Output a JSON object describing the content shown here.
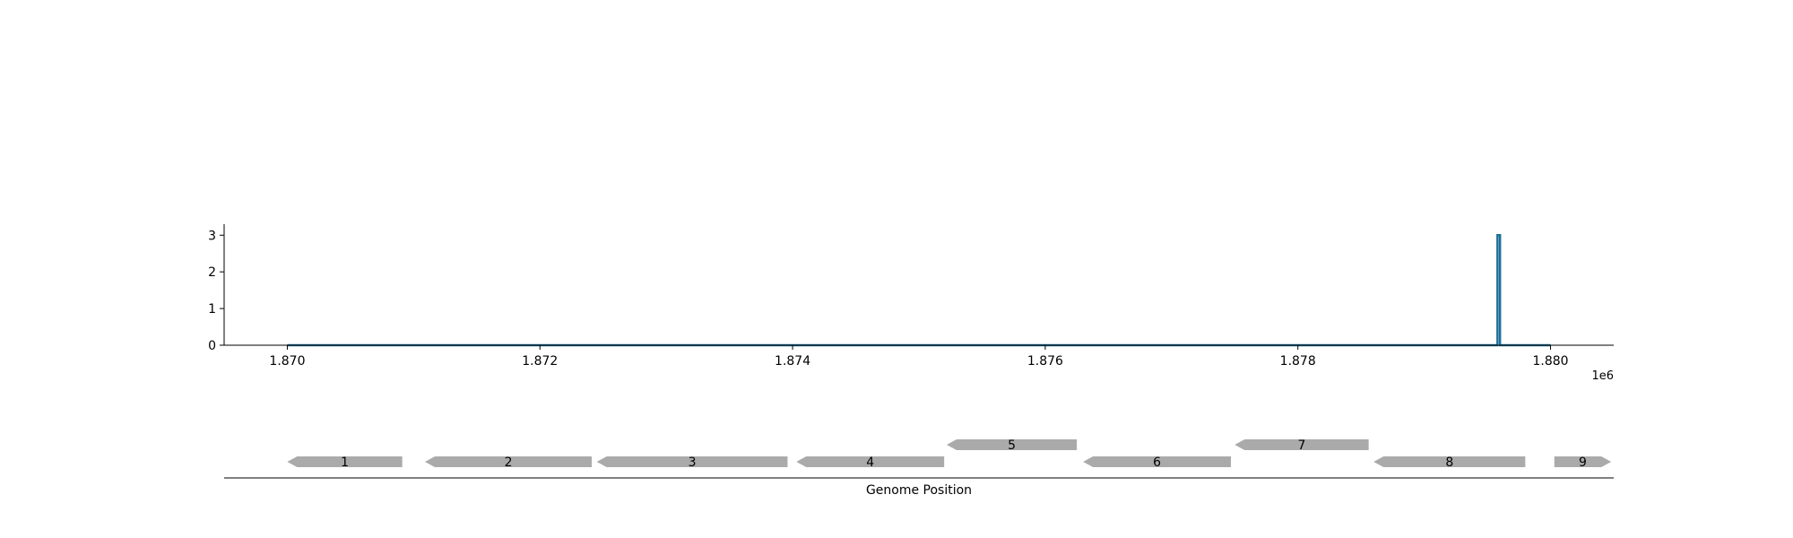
{
  "colors": {
    "line": "#1f6f9a",
    "gene_fill": "#aaaaaa",
    "axis": "#000000"
  },
  "chart_data": {
    "type": "line",
    "title": "",
    "xlabel": "Genome Position",
    "ylabel": "",
    "x_offset_label": "1e6",
    "xlim": [
      1869500,
      1880500
    ],
    "ylim": [
      0,
      3.3
    ],
    "x_ticks": [
      1870000,
      1872000,
      1874000,
      1876000,
      1878000,
      1880000
    ],
    "x_tick_labels": [
      "1.870",
      "1.872",
      "1.874",
      "1.876",
      "1.878",
      "1.880"
    ],
    "y_ticks": [
      0,
      1,
      2,
      3
    ],
    "y_tick_labels": [
      "0",
      "1",
      "2",
      "3"
    ],
    "grid": false,
    "series": [
      {
        "x": [
          1870000,
          1879580,
          1879580,
          1879600,
          1879600,
          1880000
        ],
        "y": [
          0,
          0,
          3,
          3,
          0,
          0
        ]
      }
    ],
    "genes": [
      {
        "label": "1",
        "start": 1870000,
        "end": 1870910,
        "strand": "-",
        "row": 0
      },
      {
        "label": "2",
        "start": 1871090,
        "end": 1872410,
        "strand": "-",
        "row": 0
      },
      {
        "label": "3",
        "start": 1872450,
        "end": 1873960,
        "strand": "-",
        "row": 0
      },
      {
        "label": "4",
        "start": 1874030,
        "end": 1875200,
        "strand": "-",
        "row": 0
      },
      {
        "label": "5",
        "start": 1875220,
        "end": 1876250,
        "strand": "-",
        "row": 1
      },
      {
        "label": "6",
        "start": 1876300,
        "end": 1877470,
        "strand": "-",
        "row": 0
      },
      {
        "label": "7",
        "start": 1877500,
        "end": 1878560,
        "strand": "-",
        "row": 1
      },
      {
        "label": "8",
        "start": 1878600,
        "end": 1879800,
        "strand": "-",
        "row": 0
      },
      {
        "label": "9",
        "start": 1880030,
        "end": 1880480,
        "strand": "+",
        "row": 0
      }
    ]
  }
}
